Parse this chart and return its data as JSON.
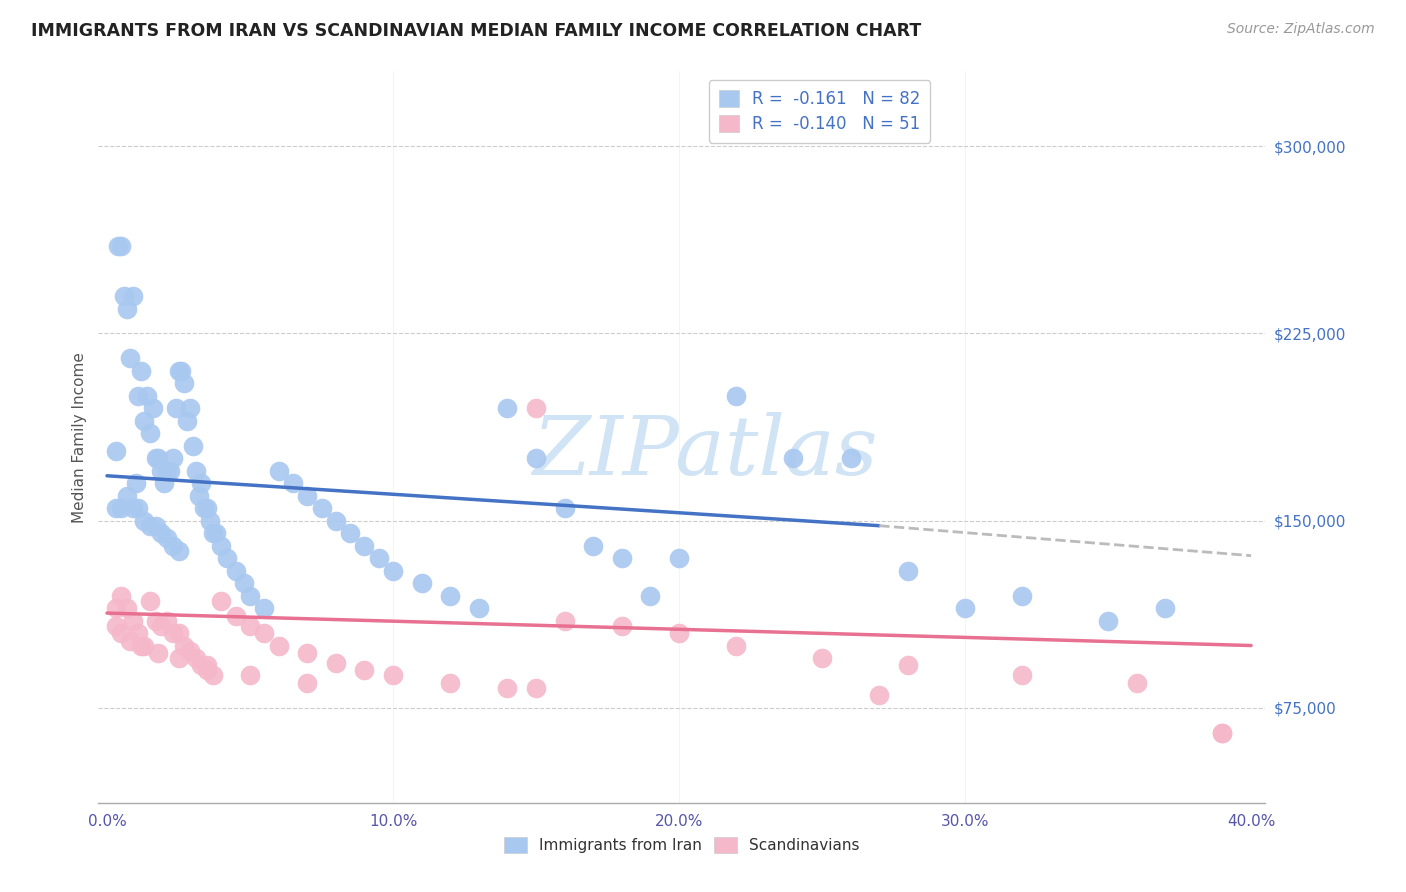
{
  "title": "IMMIGRANTS FROM IRAN VS SCANDINAVIAN MEDIAN FAMILY INCOME CORRELATION CHART",
  "source": "Source: ZipAtlas.com",
  "ylabel": "Median Family Income",
  "xlim": [
    0.0,
    0.4
  ],
  "ylim": [
    37000,
    330000
  ],
  "xtick_vals": [
    0.0,
    0.1,
    0.2,
    0.3,
    0.4
  ],
  "xtick_labels": [
    "0.0%",
    "10.0%",
    "20.0%",
    "30.0%",
    "40.0%"
  ],
  "ytick_vals": [
    75000,
    150000,
    225000,
    300000
  ],
  "ytick_labels": [
    "$75,000",
    "$150,000",
    "$225,000",
    "$300,000"
  ],
  "blue_color": "#A8C8F0",
  "pink_color": "#F5B8CB",
  "blue_line_color": "#4472C4",
  "pink_line_color": "#E87090",
  "gray_dash_color": "#BBBBBB",
  "watermark_color": "#D0E4F5",
  "blue_scatter_x": [
    0.003,
    0.004,
    0.005,
    0.006,
    0.007,
    0.008,
    0.009,
    0.01,
    0.011,
    0.012,
    0.013,
    0.014,
    0.015,
    0.016,
    0.017,
    0.018,
    0.019,
    0.02,
    0.021,
    0.022,
    0.023,
    0.024,
    0.025,
    0.026,
    0.027,
    0.028,
    0.029,
    0.03,
    0.031,
    0.032,
    0.033,
    0.034,
    0.035,
    0.036,
    0.037,
    0.038,
    0.04,
    0.042,
    0.045,
    0.048,
    0.05,
    0.055,
    0.06,
    0.065,
    0.07,
    0.075,
    0.08,
    0.085,
    0.09,
    0.095,
    0.1,
    0.11,
    0.12,
    0.13,
    0.14,
    0.15,
    0.16,
    0.17,
    0.18,
    0.19,
    0.2,
    0.22,
    0.24,
    0.26,
    0.28,
    0.3,
    0.32,
    0.35,
    0.37,
    0.003,
    0.005,
    0.007,
    0.009,
    0.011,
    0.013,
    0.015,
    0.017,
    0.019,
    0.021,
    0.023,
    0.025
  ],
  "blue_scatter_y": [
    178000,
    260000,
    260000,
    240000,
    235000,
    215000,
    240000,
    165000,
    200000,
    210000,
    190000,
    200000,
    185000,
    195000,
    175000,
    175000,
    170000,
    165000,
    170000,
    170000,
    175000,
    195000,
    210000,
    210000,
    205000,
    190000,
    195000,
    180000,
    170000,
    160000,
    165000,
    155000,
    155000,
    150000,
    145000,
    145000,
    140000,
    135000,
    130000,
    125000,
    120000,
    115000,
    170000,
    165000,
    160000,
    155000,
    150000,
    145000,
    140000,
    135000,
    130000,
    125000,
    120000,
    115000,
    195000,
    175000,
    155000,
    140000,
    135000,
    120000,
    135000,
    200000,
    175000,
    175000,
    130000,
    115000,
    120000,
    110000,
    115000,
    155000,
    155000,
    160000,
    155000,
    155000,
    150000,
    148000,
    148000,
    145000,
    143000,
    140000,
    138000
  ],
  "pink_scatter_x": [
    0.003,
    0.005,
    0.007,
    0.009,
    0.011,
    0.013,
    0.015,
    0.017,
    0.019,
    0.021,
    0.023,
    0.025,
    0.027,
    0.029,
    0.031,
    0.033,
    0.035,
    0.037,
    0.04,
    0.045,
    0.05,
    0.055,
    0.06,
    0.07,
    0.08,
    0.09,
    0.1,
    0.12,
    0.14,
    0.16,
    0.18,
    0.2,
    0.22,
    0.25,
    0.28,
    0.32,
    0.36,
    0.39,
    0.003,
    0.005,
    0.008,
    0.012,
    0.018,
    0.025,
    0.035,
    0.05,
    0.07,
    0.15,
    0.27,
    0.39,
    0.15
  ],
  "pink_scatter_y": [
    115000,
    120000,
    115000,
    110000,
    105000,
    100000,
    118000,
    110000,
    108000,
    110000,
    105000,
    105000,
    100000,
    98000,
    95000,
    92000,
    90000,
    88000,
    118000,
    112000,
    108000,
    105000,
    100000,
    97000,
    93000,
    90000,
    88000,
    85000,
    83000,
    110000,
    108000,
    105000,
    100000,
    95000,
    92000,
    88000,
    85000,
    65000,
    108000,
    105000,
    102000,
    100000,
    97000,
    95000,
    92000,
    88000,
    85000,
    83000,
    80000,
    65000,
    195000
  ],
  "blue_line_x": [
    0.0,
    0.27
  ],
  "blue_line_y": [
    168000,
    148000
  ],
  "gray_line_x": [
    0.27,
    0.4
  ],
  "gray_line_y": [
    148000,
    136000
  ],
  "pink_line_x": [
    0.0,
    0.4
  ],
  "pink_line_y": [
    113000,
    100000
  ]
}
